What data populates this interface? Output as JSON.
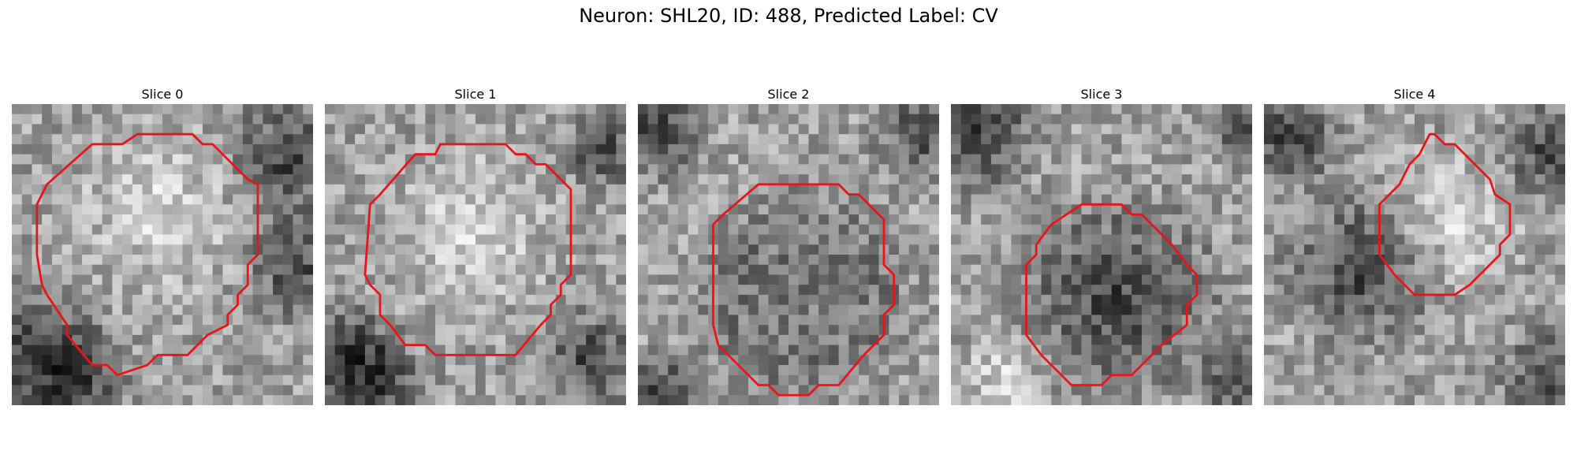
{
  "figure": {
    "title": "Neuron: SHL20, ID: 488, Predicted Label: CV"
  },
  "panels": [
    {
      "title": "Slice 0",
      "contour": [
        [
          12.5,
          3
        ],
        [
          18,
          3
        ],
        [
          19,
          4
        ],
        [
          20,
          4
        ],
        [
          23.5,
          7.5
        ],
        [
          24.5,
          8
        ],
        [
          24.5,
          15
        ],
        [
          23.5,
          16
        ],
        [
          23.5,
          18
        ],
        [
          22.5,
          19
        ],
        [
          22.5,
          20
        ],
        [
          21.5,
          21
        ],
        [
          21.5,
          22
        ],
        [
          19.5,
          23
        ],
        [
          17.5,
          25
        ],
        [
          14.5,
          25
        ],
        [
          13.5,
          26
        ],
        [
          10.5,
          27
        ],
        [
          9.5,
          26
        ],
        [
          8,
          26
        ],
        [
          5.5,
          23
        ],
        [
          5.5,
          22
        ],
        [
          3.5,
          19
        ],
        [
          3,
          18
        ],
        [
          2.5,
          15
        ],
        [
          2.5,
          10
        ],
        [
          3.5,
          8
        ],
        [
          8,
          4
        ],
        [
          11,
          4
        ]
      ],
      "seed": 11,
      "dark_spots": [
        [
          1,
          24,
          6
        ],
        [
          27,
          5,
          5
        ],
        [
          28,
          16,
          4
        ],
        [
          6,
          27,
          4
        ]
      ],
      "bright_spots": [
        [
          14,
          10,
          7
        ]
      ]
    },
    {
      "title": "Slice 1",
      "contour": [
        [
          11.5,
          4
        ],
        [
          18,
          4
        ],
        [
          19,
          5
        ],
        [
          20,
          5
        ],
        [
          21,
          6
        ],
        [
          22,
          6
        ],
        [
          24.5,
          8.5
        ],
        [
          24.5,
          17
        ],
        [
          23.5,
          18
        ],
        [
          23.5,
          19
        ],
        [
          22.5,
          20
        ],
        [
          22.5,
          21
        ],
        [
          21.5,
          22
        ],
        [
          19,
          25
        ],
        [
          11,
          25
        ],
        [
          10,
          24
        ],
        [
          8,
          24
        ],
        [
          6.5,
          22
        ],
        [
          5.5,
          21
        ],
        [
          5.5,
          19
        ],
        [
          4.5,
          18
        ],
        [
          4,
          17
        ],
        [
          4.5,
          10
        ],
        [
          5.5,
          9
        ],
        [
          9,
          5
        ],
        [
          11,
          5
        ]
      ],
      "seed": 23,
      "dark_spots": [
        [
          2,
          24,
          4
        ],
        [
          5,
          28,
          4
        ],
        [
          27,
          4,
          3
        ],
        [
          26,
          25,
          4
        ]
      ],
      "bright_spots": [
        [
          14,
          12,
          7
        ]
      ]
    },
    {
      "title": "Slice 2",
      "contour": [
        [
          13.5,
          8
        ],
        [
          20,
          8
        ],
        [
          21,
          9
        ],
        [
          22,
          9
        ],
        [
          24.5,
          11.5
        ],
        [
          24.5,
          16
        ],
        [
          25.5,
          17
        ],
        [
          25.5,
          20
        ],
        [
          24.5,
          21
        ],
        [
          24.5,
          23
        ],
        [
          23.5,
          24
        ],
        [
          22.5,
          25
        ],
        [
          20,
          28
        ],
        [
          18,
          28
        ],
        [
          17,
          29
        ],
        [
          14,
          29
        ],
        [
          13,
          28
        ],
        [
          12,
          28
        ],
        [
          10,
          26
        ],
        [
          8,
          24
        ],
        [
          7.5,
          22
        ],
        [
          7.5,
          12
        ],
        [
          8.5,
          11
        ],
        [
          12,
          8
        ]
      ],
      "seed": 37,
      "dark_spots": [
        [
          1,
          2,
          4
        ],
        [
          28,
          2,
          4
        ],
        [
          2,
          28,
          3
        ],
        [
          16,
          19,
          8
        ]
      ],
      "bright_spots": [
        [
          16,
          19,
          5
        ]
      ]
    },
    {
      "title": "Slice 3",
      "contour": [
        [
          14.5,
          10
        ],
        [
          17,
          10
        ],
        [
          18,
          11
        ],
        [
          19,
          11
        ],
        [
          20.5,
          12.5
        ],
        [
          22,
          14
        ],
        [
          23.5,
          16
        ],
        [
          24.5,
          17
        ],
        [
          24.5,
          19
        ],
        [
          23.5,
          20
        ],
        [
          23.5,
          22
        ],
        [
          21,
          24
        ],
        [
          18,
          27
        ],
        [
          16,
          27
        ],
        [
          15,
          28
        ],
        [
          12,
          28
        ],
        [
          10,
          26
        ],
        [
          9,
          25
        ],
        [
          7.5,
          23
        ],
        [
          7.5,
          16
        ],
        [
          8.5,
          15
        ],
        [
          8.5,
          14
        ],
        [
          10,
          12
        ],
        [
          13,
          10
        ]
      ],
      "seed": 53,
      "dark_spots": [
        [
          2,
          2,
          5
        ],
        [
          16,
          19,
          8
        ],
        [
          29,
          2,
          3
        ],
        [
          28,
          27,
          3
        ]
      ],
      "bright_spots": [
        [
          5,
          27,
          4
        ]
      ]
    },
    {
      "title": "Slice 4",
      "contour": [
        [
          16.5,
          3
        ],
        [
          17,
          3
        ],
        [
          18,
          4
        ],
        [
          19,
          4
        ],
        [
          22.5,
          7.5
        ],
        [
          23,
          9
        ],
        [
          24.5,
          10
        ],
        [
          24.5,
          13
        ],
        [
          23.5,
          14
        ],
        [
          23.5,
          15
        ],
        [
          22.5,
          16
        ],
        [
          20.5,
          18
        ],
        [
          19,
          19
        ],
        [
          15,
          19
        ],
        [
          13,
          17
        ],
        [
          11.5,
          15
        ],
        [
          11.5,
          10
        ],
        [
          12.5,
          9
        ],
        [
          13.5,
          8
        ],
        [
          14.5,
          6
        ],
        [
          15.5,
          5
        ],
        [
          16,
          4
        ]
      ],
      "seed": 71,
      "dark_spots": [
        [
          9,
          16,
          6
        ],
        [
          2,
          3,
          4
        ],
        [
          28,
          4,
          4
        ],
        [
          28,
          27,
          4
        ]
      ],
      "bright_spots": [
        [
          18,
          11,
          6
        ]
      ]
    }
  ]
}
